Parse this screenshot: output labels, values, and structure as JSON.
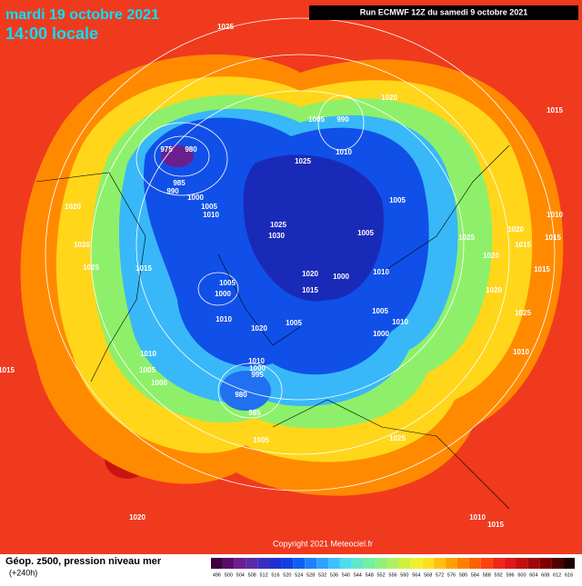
{
  "header": {
    "title": "mardi 19 octobre 2021",
    "subtitle": "14:00 locale",
    "run": "Run ECMWF 12Z du samedi 9 octobre 2021"
  },
  "footer": {
    "title": "Géop. z500, pression niveau mer",
    "lead": "(+240h)",
    "copyright": "Copyright 2021 Meteociel.fr"
  },
  "legend": {
    "levels": [
      496,
      500,
      504,
      508,
      512,
      516,
      520,
      524,
      528,
      532,
      536,
      540,
      544,
      548,
      552,
      556,
      560,
      564,
      568,
      572,
      576,
      580,
      584,
      588,
      592,
      596,
      600,
      604,
      608,
      612,
      616
    ],
    "colors": [
      "#3d0040",
      "#5a0a6a",
      "#6b1e8e",
      "#5a2aa8",
      "#3a2ec0",
      "#2030d0",
      "#1040e0",
      "#1060f0",
      "#2080ff",
      "#30a0ff",
      "#40c0ff",
      "#50dcf0",
      "#60e8c8",
      "#70f0a0",
      "#90f080",
      "#b0f060",
      "#d0f040",
      "#f0f030",
      "#ffe020",
      "#ffc010",
      "#ffa000",
      "#ff8000",
      "#ff6000",
      "#ff4010",
      "#f02818",
      "#e01818",
      "#c01010",
      "#a00808",
      "#800000",
      "#500000",
      "#200000"
    ]
  },
  "isobar_labels": [
    "1025",
    "1020",
    "1015",
    "1005",
    "990",
    "1010",
    "975",
    "980",
    "985",
    "990",
    "1000",
    "1005",
    "1010",
    "1025",
    "1005",
    "1025",
    "1030",
    "1005",
    "1025",
    "1020",
    "1015",
    "1020",
    "1020",
    "1020",
    "1025",
    "1015",
    "1010",
    "1015",
    "1015",
    "1020",
    "1000",
    "1010",
    "1015",
    "1005",
    "1000",
    "1020",
    "1005",
    "1010",
    "1025",
    "1010",
    "1020",
    "1005",
    "1000",
    "1010",
    "1010",
    "1005",
    "1000",
    "1015",
    "1010",
    "1000",
    "995",
    "980",
    "985",
    "1005",
    "1025",
    "1020",
    "1010",
    "1015"
  ]
}
